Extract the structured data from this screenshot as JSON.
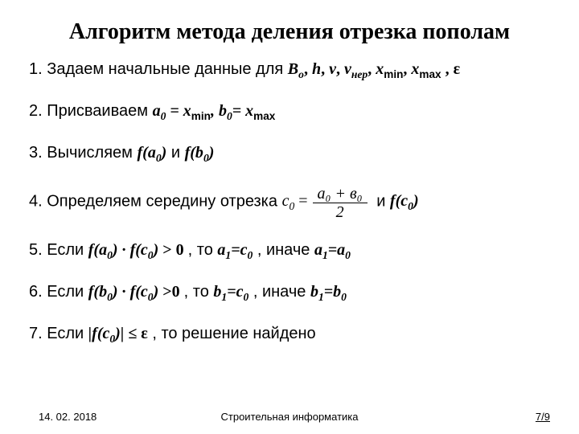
{
  "title": "Алгоритм метода деления отрезка пополам",
  "steps": {
    "s1a": "1. Задаем начальные данные для ",
    "s2a": "2. Присваиваем ",
    "s3a": "3. Вычисляем ",
    "s3b": " и ",
    "s4a": "4. Определяем середину отрезка  ",
    "s4b": "   и  ",
    "s5a": "5. Если ",
    "s5b": ", то ",
    "s5c": ", иначе ",
    "s6a": "6. Если ",
    "s6b": ", то ",
    "s6c": ", иначе ",
    "s7a": "7. Если ",
    "s7b": ", то решение найдено"
  },
  "math": {
    "params": [
      "B",
      "о",
      ", ",
      "h",
      ", ",
      "v",
      ", ",
      "v",
      "нер",
      ", ",
      "x",
      "min",
      ", ",
      "x",
      "max",
      " , ",
      "ε"
    ],
    "assign": [
      "a",
      "0",
      " = x",
      "min",
      ", b",
      "0",
      "= x",
      "max"
    ],
    "fa0": [
      "f",
      "(a",
      "0",
      ")"
    ],
    "fb0": [
      "f",
      "(b",
      "0",
      ")"
    ],
    "fc0": [
      "f",
      "(c",
      "0",
      ")"
    ],
    "c0eq": "c",
    "c0sub": "0",
    "eq": " = ",
    "num": "a₀ + в₀",
    "den": "2",
    "gt0": " > 0",
    "gt0b": " >0",
    "a1c0": [
      "a",
      "1",
      "=c",
      "0"
    ],
    "a1a0": [
      "a",
      "1",
      "=a",
      "0"
    ],
    "b1c0": [
      "b",
      "1",
      "=c",
      "0"
    ],
    "b1b0": [
      "b",
      "1",
      "=b",
      "0"
    ],
    "dot": " ∙ ",
    "abs_fc0": [
      "|f",
      "(c",
      "0",
      ")| ≤  "
    ],
    "eps": "ε"
  },
  "footer": {
    "date": "14. 02. 2018",
    "center": "Строительная информатика",
    "page": "7/9"
  },
  "style": {
    "title_fontsize": 28,
    "body_fontsize": 20,
    "footer_fontsize": 13,
    "text_color": "#000000",
    "background": "#ffffff",
    "page_underline_color": "#000000"
  }
}
